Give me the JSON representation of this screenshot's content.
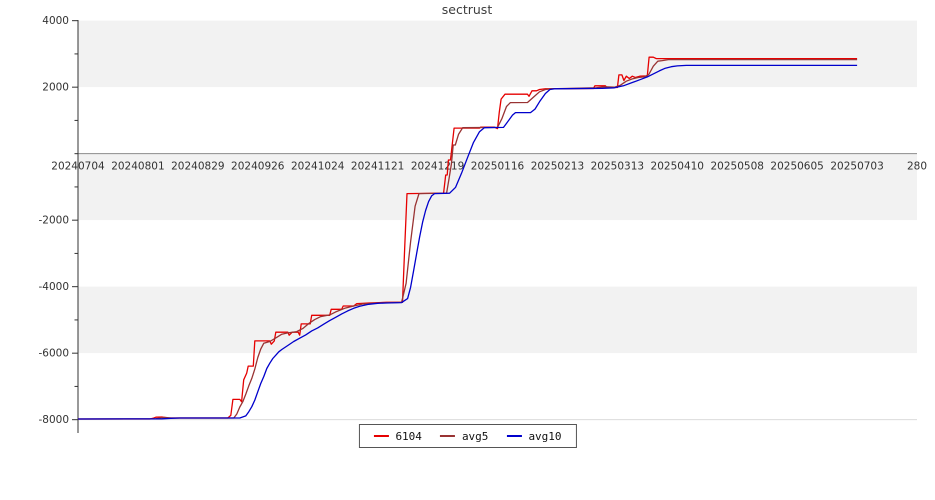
{
  "chart_data": {
    "type": "line",
    "title": "sectrust",
    "x_axis": {
      "range": [
        0,
        280
      ],
      "unit": "business-day index",
      "ticks": [
        {
          "pos": 0,
          "label": "20240704"
        },
        {
          "pos": 20,
          "label": "20240801"
        },
        {
          "pos": 40,
          "label": "20240829"
        },
        {
          "pos": 60,
          "label": "20240926"
        },
        {
          "pos": 80,
          "label": "20241024"
        },
        {
          "pos": 100,
          "label": "20241121"
        },
        {
          "pos": 120,
          "label": "20241219"
        },
        {
          "pos": 140,
          "label": "20250116"
        },
        {
          "pos": 160,
          "label": "20250213"
        },
        {
          "pos": 180,
          "label": "20250313"
        },
        {
          "pos": 200,
          "label": "20250410"
        },
        {
          "pos": 220,
          "label": "20250508"
        },
        {
          "pos": 240,
          "label": "20250605"
        },
        {
          "pos": 260,
          "label": "20250703"
        },
        {
          "pos": 280,
          "label": "280"
        }
      ]
    },
    "y_axis": {
      "range": [
        -8450,
        4000
      ],
      "major_ticks": [
        4000,
        2000,
        -2000,
        -4000,
        -6000,
        -8000
      ],
      "minor_ticks": [
        3000,
        1000,
        0,
        -1000,
        -3000,
        -5000,
        -7000
      ],
      "zero_line": 0
    },
    "plot": {
      "band_step": 2000,
      "band_top": 4000,
      "band_bottom": -8000,
      "band_color_gray": "#f2f2f2",
      "band_color_white": "#ffffff",
      "zero_line_color": "#8c8c8c",
      "baseline_grid_color": "#dcdcdc",
      "axis_color": "#333333"
    },
    "legend_position": "bottom-center",
    "series": [
      {
        "name": "6104",
        "color": "#e60000",
        "points": [
          [
            0,
            -7980
          ],
          [
            24,
            -7980
          ],
          [
            25,
            -7960
          ],
          [
            26,
            -7925
          ],
          [
            28,
            -7920
          ],
          [
            30,
            -7950
          ],
          [
            50,
            -7950
          ],
          [
            51,
            -7870
          ],
          [
            51.7,
            -7390
          ],
          [
            54,
            -7390
          ],
          [
            54.6,
            -7460
          ],
          [
            55.3,
            -6800
          ],
          [
            56.3,
            -6600
          ],
          [
            56.8,
            -6390
          ],
          [
            58.5,
            -6390
          ],
          [
            59,
            -5630
          ],
          [
            64,
            -5630
          ],
          [
            64.5,
            -5730
          ],
          [
            65.5,
            -5630
          ],
          [
            66,
            -5370
          ],
          [
            70,
            -5370
          ],
          [
            70.5,
            -5460
          ],
          [
            71.5,
            -5370
          ],
          [
            73.5,
            -5370
          ],
          [
            74,
            -5460
          ],
          [
            74.5,
            -5120
          ],
          [
            77.5,
            -5120
          ],
          [
            78,
            -4860
          ],
          [
            84,
            -4860
          ],
          [
            84.5,
            -4680
          ],
          [
            88,
            -4680
          ],
          [
            88.5,
            -4580
          ],
          [
            92,
            -4580
          ],
          [
            93,
            -4510
          ],
          [
            97,
            -4490
          ],
          [
            103,
            -4470
          ],
          [
            108.3,
            -4470
          ],
          [
            109,
            -2900
          ],
          [
            109.8,
            -1200
          ],
          [
            122,
            -1185
          ],
          [
            122.7,
            -640
          ],
          [
            123.2,
            -640
          ],
          [
            123.6,
            -190
          ],
          [
            124.3,
            -190
          ],
          [
            125.5,
            770
          ],
          [
            134,
            770
          ],
          [
            134.4,
            795
          ],
          [
            139,
            795
          ],
          [
            140,
            755
          ],
          [
            140.6,
            1250
          ],
          [
            141.2,
            1640
          ],
          [
            142.5,
            1790
          ],
          [
            150,
            1790
          ],
          [
            150.5,
            1725
          ],
          [
            151.5,
            1890
          ],
          [
            153,
            1890
          ],
          [
            154,
            1930
          ],
          [
            156,
            1950
          ],
          [
            172,
            1960
          ],
          [
            172.5,
            2040
          ],
          [
            176,
            2040
          ],
          [
            176.5,
            1990
          ],
          [
            180,
            1990
          ],
          [
            180.5,
            2370
          ],
          [
            181.5,
            2370
          ],
          [
            182.2,
            2200
          ],
          [
            183,
            2330
          ],
          [
            184,
            2260
          ],
          [
            185,
            2330
          ],
          [
            186,
            2290
          ],
          [
            187.5,
            2330
          ],
          [
            190,
            2340
          ],
          [
            190.6,
            2900
          ],
          [
            192,
            2900
          ],
          [
            193,
            2860
          ],
          [
            260,
            2860
          ]
        ]
      },
      {
        "name": "avg5",
        "color": "#993333",
        "points": [
          [
            0,
            -7980
          ],
          [
            26,
            -7975
          ],
          [
            27.5,
            -7945
          ],
          [
            29,
            -7930
          ],
          [
            31,
            -7950
          ],
          [
            52,
            -7950
          ],
          [
            53,
            -7830
          ],
          [
            54,
            -7620
          ],
          [
            55,
            -7460
          ],
          [
            56,
            -7230
          ],
          [
            57,
            -6980
          ],
          [
            58,
            -6760
          ],
          [
            59,
            -6480
          ],
          [
            60,
            -6130
          ],
          [
            61,
            -5870
          ],
          [
            62,
            -5700
          ],
          [
            64,
            -5650
          ],
          [
            66,
            -5540
          ],
          [
            68,
            -5430
          ],
          [
            70,
            -5390
          ],
          [
            73,
            -5350
          ],
          [
            75,
            -5260
          ],
          [
            77,
            -5110
          ],
          [
            79,
            -4990
          ],
          [
            81,
            -4900
          ],
          [
            84,
            -4850
          ],
          [
            86,
            -4760
          ],
          [
            89,
            -4650
          ],
          [
            92,
            -4580
          ],
          [
            95,
            -4520
          ],
          [
            100,
            -4490
          ],
          [
            108,
            -4470
          ],
          [
            109.5,
            -3900
          ],
          [
            111,
            -2650
          ],
          [
            112.5,
            -1580
          ],
          [
            113.8,
            -1200
          ],
          [
            123,
            -1185
          ],
          [
            123.8,
            -760
          ],
          [
            124.6,
            -310
          ],
          [
            125.2,
            260
          ],
          [
            125.9,
            260
          ],
          [
            127,
            580
          ],
          [
            128.4,
            780
          ],
          [
            140,
            790
          ],
          [
            141.5,
            1060
          ],
          [
            143,
            1420
          ],
          [
            144.3,
            1535
          ],
          [
            150,
            1540
          ],
          [
            152,
            1700
          ],
          [
            154,
            1860
          ],
          [
            156,
            1930
          ],
          [
            158,
            1950
          ],
          [
            173,
            1980
          ],
          [
            176,
            2010
          ],
          [
            179,
            2000
          ],
          [
            181,
            2060
          ],
          [
            183,
            2180
          ],
          [
            185,
            2250
          ],
          [
            187,
            2290
          ],
          [
            189,
            2310
          ],
          [
            190.5,
            2380
          ],
          [
            192,
            2630
          ],
          [
            193.5,
            2780
          ],
          [
            195,
            2800
          ],
          [
            197,
            2830
          ],
          [
            260,
            2830
          ]
        ]
      },
      {
        "name": "avg10",
        "color": "#0000cc",
        "points": [
          [
            0,
            -7980
          ],
          [
            28,
            -7975
          ],
          [
            31,
            -7958
          ],
          [
            34,
            -7950
          ],
          [
            54,
            -7950
          ],
          [
            56,
            -7885
          ],
          [
            57,
            -7760
          ],
          [
            58,
            -7610
          ],
          [
            59,
            -7410
          ],
          [
            60,
            -7160
          ],
          [
            61,
            -6910
          ],
          [
            62,
            -6700
          ],
          [
            63,
            -6460
          ],
          [
            64,
            -6300
          ],
          [
            65,
            -6160
          ],
          [
            66,
            -6060
          ],
          [
            67,
            -5960
          ],
          [
            68,
            -5890
          ],
          [
            70,
            -5770
          ],
          [
            72,
            -5650
          ],
          [
            74,
            -5550
          ],
          [
            76,
            -5450
          ],
          [
            78,
            -5330
          ],
          [
            80,
            -5240
          ],
          [
            82,
            -5130
          ],
          [
            84,
            -5020
          ],
          [
            86,
            -4920
          ],
          [
            88,
            -4820
          ],
          [
            90,
            -4730
          ],
          [
            92,
            -4650
          ],
          [
            94,
            -4590
          ],
          [
            97,
            -4530
          ],
          [
            100,
            -4500
          ],
          [
            103,
            -4490
          ],
          [
            108,
            -4480
          ],
          [
            110,
            -4360
          ],
          [
            111,
            -4020
          ],
          [
            112,
            -3520
          ],
          [
            113,
            -3010
          ],
          [
            114,
            -2510
          ],
          [
            115,
            -2060
          ],
          [
            116,
            -1710
          ],
          [
            117,
            -1440
          ],
          [
            118,
            -1270
          ],
          [
            119,
            -1200
          ],
          [
            124,
            -1190
          ],
          [
            126,
            -1010
          ],
          [
            128,
            -590
          ],
          [
            130,
            -120
          ],
          [
            132,
            340
          ],
          [
            134,
            660
          ],
          [
            135.6,
            780
          ],
          [
            142,
            790
          ],
          [
            143,
            910
          ],
          [
            145,
            1160
          ],
          [
            146,
            1235
          ],
          [
            151,
            1235
          ],
          [
            152.5,
            1340
          ],
          [
            154,
            1560
          ],
          [
            156,
            1810
          ],
          [
            157.5,
            1930
          ],
          [
            159,
            1950
          ],
          [
            175,
            1965
          ],
          [
            179,
            1980
          ],
          [
            182,
            2040
          ],
          [
            185,
            2140
          ],
          [
            188,
            2240
          ],
          [
            190,
            2310
          ],
          [
            192,
            2400
          ],
          [
            194,
            2490
          ],
          [
            196,
            2570
          ],
          [
            198,
            2615
          ],
          [
            200,
            2640
          ],
          [
            203,
            2655
          ],
          [
            260,
            2655
          ]
        ]
      }
    ]
  }
}
